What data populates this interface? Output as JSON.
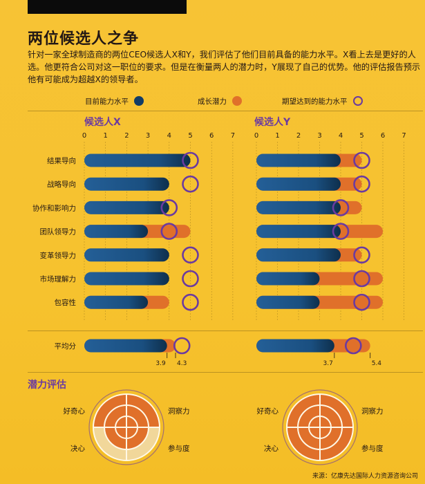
{
  "title": "两位候选人之争",
  "intro": "针对一家全球制造商的两位CEO候选人X和Y，我们评估了他们目前具备的能力水平。X看上去是更好的人选。他更符合公司对这一职位的要求。但是在衡量两人的潜力时，Y展现了自己的优势。他的评估报告预示他有可能成为超越X的领导者。",
  "legend": {
    "current": "目前能力水平",
    "growth": "成长潜力",
    "target": "期望达到的能力水平"
  },
  "colors": {
    "current": "#1d5c96",
    "current_dark": "#0d2e4a",
    "growth": "#e0702a",
    "target": "#6b3aa0",
    "background": "#f6c22e"
  },
  "chart_data": {
    "type": "bar",
    "subtype": "horizontal bullet bars",
    "categories": [
      "结果导向",
      "战略导向",
      "协作和影响力",
      "团队领导力",
      "变革领导力",
      "市场理解力",
      "包容性"
    ],
    "ticks": [
      "0",
      "1",
      "2",
      "3",
      "4",
      "5",
      "6",
      "7"
    ],
    "xlim": [
      0,
      7
    ],
    "average_label": "平均分",
    "candidates": [
      {
        "name": "候选人X",
        "current": [
          5,
          4,
          4,
          3,
          4,
          4,
          3
        ],
        "potential": [
          5,
          4,
          4,
          5,
          4,
          4,
          4
        ],
        "target": [
          5,
          5,
          4,
          4,
          5,
          5,
          5
        ],
        "average": {
          "current": 3.9,
          "potential": 4.3,
          "target": 4.6,
          "current_label": "3.9",
          "potential_label": "4.3"
        }
      },
      {
        "name": "候选人Y",
        "current": [
          4,
          4,
          4,
          4,
          4,
          3,
          3
        ],
        "potential": [
          5,
          5,
          5,
          6,
          5,
          6,
          6
        ],
        "target": [
          5,
          5,
          4,
          4,
          5,
          5,
          5
        ],
        "average": {
          "current": 3.7,
          "potential": 5.4,
          "target": 4.6,
          "current_label": "3.7",
          "potential_label": "5.4"
        }
      }
    ],
    "potential_section": {
      "title": "潜力评估",
      "labels": [
        "好奇心",
        "洞察力",
        "决心",
        "参与度"
      ],
      "x_rings": [
        3,
        3,
        2,
        2
      ],
      "y_rings": [
        3,
        3,
        3,
        3
      ],
      "max_rings": 3
    }
  },
  "source": "来源：亿康先达国际人力资源咨询公司"
}
